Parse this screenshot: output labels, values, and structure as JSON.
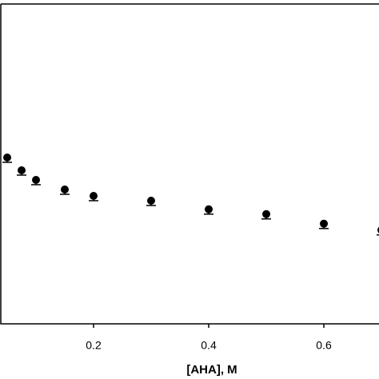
{
  "chart_data": {
    "type": "scatter",
    "x_label": "[AHA], M",
    "x": [
      0.05,
      0.075,
      0.1,
      0.15,
      0.2,
      0.3,
      0.4,
      0.5,
      0.6,
      0.7
    ],
    "values": [
      0.52,
      0.48,
      0.45,
      0.42,
      0.4,
      0.385,
      0.358,
      0.343,
      0.313,
      0.293
    ],
    "errors": [
      0.015,
      0.015,
      0.015,
      0.015,
      0.015,
      0.015,
      0.015,
      0.015,
      0.015,
      0.015
    ],
    "color": "#000000",
    "xlim": [
      0.0375,
      0.6958
    ],
    "xticks": [
      0.2,
      0.4,
      0.6
    ],
    "ylim": [
      0,
      1
    ]
  }
}
